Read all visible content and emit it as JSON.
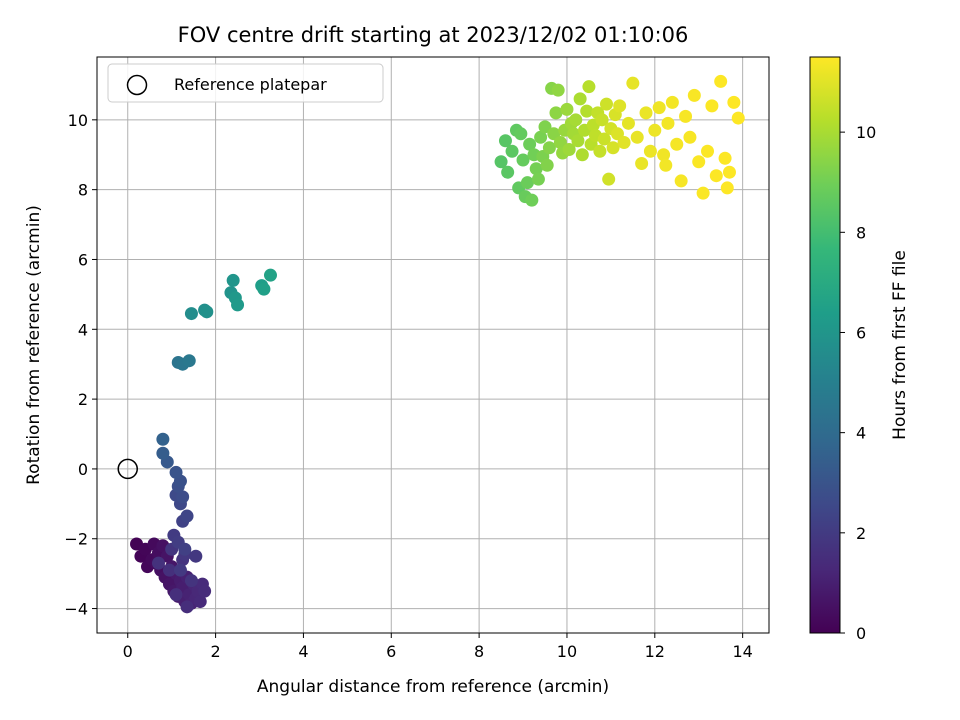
{
  "chart_data": {
    "type": "scatter",
    "title": "FOV centre drift starting at 2023/12/02 01:10:06",
    "xlabel": "Angular distance from reference (arcmin)",
    "ylabel": "Rotation from reference (arcmin)",
    "xlim": [
      -0.7,
      14.6
    ],
    "ylim": [
      -4.7,
      11.8
    ],
    "xticks": [
      0,
      2,
      4,
      6,
      8,
      10,
      12,
      14
    ],
    "yticks": [
      -4,
      -2,
      0,
      2,
      4,
      6,
      8,
      10
    ],
    "grid": true,
    "legend": {
      "placement": "top-left",
      "entries": [
        "Reference platepar"
      ]
    },
    "colorbar": {
      "label": "Hours from first FF file",
      "range": [
        0,
        11.5
      ],
      "ticks": [
        0,
        2,
        4,
        6,
        8,
        10
      ],
      "colormap": [
        "#440154",
        "#482878",
        "#3e4989",
        "#31688e",
        "#26828e",
        "#1f9e89",
        "#35b779",
        "#6ece58",
        "#b5de2b",
        "#fde725"
      ]
    },
    "reference": {
      "name": "Reference platepar",
      "x": 0,
      "y": 0,
      "marker": "open-circle"
    },
    "series": [
      {
        "points": [
          [
            0.2,
            -2.15,
            0.05
          ],
          [
            0.3,
            -2.5,
            0.1
          ],
          [
            0.4,
            -2.3,
            0.15
          ],
          [
            0.45,
            -2.8,
            0.2
          ],
          [
            0.55,
            -2.6,
            0.25
          ],
          [
            0.6,
            -2.15,
            0.3
          ],
          [
            0.65,
            -2.7,
            0.35
          ],
          [
            0.7,
            -2.4,
            0.4
          ],
          [
            0.75,
            -2.9,
            0.45
          ],
          [
            0.8,
            -2.2,
            0.5
          ],
          [
            0.85,
            -3.1,
            0.55
          ],
          [
            0.9,
            -2.5,
            0.6
          ],
          [
            0.95,
            -3.3,
            0.65
          ],
          [
            1.0,
            -2.8,
            0.7
          ],
          [
            1.05,
            -3.5,
            0.75
          ],
          [
            1.1,
            -3.0,
            0.8
          ],
          [
            1.15,
            -3.65,
            0.85
          ],
          [
            1.2,
            -3.2,
            0.9
          ],
          [
            1.25,
            -3.4,
            0.95
          ],
          [
            1.3,
            -3.8,
            1.0
          ],
          [
            1.35,
            -3.1,
            1.05
          ],
          [
            1.4,
            -3.6,
            1.1
          ],
          [
            1.45,
            -3.85,
            1.15
          ],
          [
            1.5,
            -3.3,
            1.2
          ],
          [
            1.55,
            -3.7,
            1.25
          ],
          [
            1.6,
            -3.5,
            1.3
          ],
          [
            1.65,
            -3.8,
            1.35
          ],
          [
            1.7,
            -3.3,
            1.4
          ],
          [
            1.75,
            -3.5,
            1.45
          ],
          [
            1.35,
            -3.95,
            1.5
          ],
          [
            1.1,
            -3.6,
            1.55
          ],
          [
            0.95,
            -2.9,
            1.6
          ],
          [
            0.7,
            -2.7,
            1.65
          ],
          [
            1.25,
            -2.6,
            1.7
          ],
          [
            1.45,
            -3.2,
            1.75
          ],
          [
            1.0,
            -2.3,
            1.8
          ],
          [
            1.3,
            -2.45,
            1.85
          ],
          [
            1.55,
            -2.5,
            1.9
          ],
          [
            1.2,
            -2.9,
            1.95
          ],
          [
            1.05,
            -1.9,
            2.0
          ],
          [
            1.15,
            -2.1,
            2.1
          ],
          [
            1.3,
            -2.3,
            2.2
          ],
          [
            1.25,
            -1.5,
            2.3
          ],
          [
            1.35,
            -1.35,
            2.4
          ],
          [
            1.2,
            -1.0,
            2.5
          ],
          [
            1.1,
            -0.75,
            2.6
          ],
          [
            1.25,
            -0.8,
            2.7
          ],
          [
            1.15,
            -0.5,
            2.8
          ],
          [
            1.2,
            -0.35,
            2.9
          ],
          [
            1.1,
            -0.1,
            3.0
          ],
          [
            0.9,
            0.2,
            3.2
          ],
          [
            0.8,
            0.45,
            3.4
          ],
          [
            0.8,
            0.85,
            3.6
          ],
          [
            1.15,
            3.05,
            4.4
          ],
          [
            1.25,
            3.0,
            4.5
          ],
          [
            1.4,
            3.1,
            4.6
          ],
          [
            1.45,
            4.45,
            5.6
          ],
          [
            1.75,
            4.55,
            5.7
          ],
          [
            1.8,
            4.5,
            5.8
          ],
          [
            2.35,
            5.05,
            5.9
          ],
          [
            2.4,
            5.4,
            6.0
          ],
          [
            2.45,
            4.9,
            6.1
          ],
          [
            2.5,
            4.7,
            6.2
          ],
          [
            3.05,
            5.25,
            6.4
          ],
          [
            3.1,
            5.15,
            6.5
          ],
          [
            3.25,
            5.55,
            6.6
          ],
          [
            8.5,
            8.8,
            8.4
          ],
          [
            8.6,
            9.4,
            8.45
          ],
          [
            8.65,
            8.5,
            8.5
          ],
          [
            8.75,
            9.1,
            8.55
          ],
          [
            8.85,
            9.7,
            8.6
          ],
          [
            8.9,
            8.05,
            8.65
          ],
          [
            8.95,
            9.6,
            8.7
          ],
          [
            9.0,
            8.85,
            8.75
          ],
          [
            9.05,
            7.8,
            8.8
          ],
          [
            9.1,
            8.2,
            8.85
          ],
          [
            9.15,
            9.3,
            8.9
          ],
          [
            9.2,
            7.7,
            8.95
          ],
          [
            9.25,
            9.0,
            9.0
          ],
          [
            9.3,
            8.6,
            9.05
          ],
          [
            9.35,
            8.3,
            9.1
          ],
          [
            9.4,
            9.5,
            9.15
          ],
          [
            9.45,
            8.95,
            9.2
          ],
          [
            9.5,
            9.8,
            9.25
          ],
          [
            9.55,
            8.7,
            9.3
          ],
          [
            9.6,
            9.2,
            9.35
          ],
          [
            9.65,
            10.9,
            9.4
          ],
          [
            9.7,
            9.6,
            9.45
          ],
          [
            9.75,
            10.2,
            9.5
          ],
          [
            9.8,
            10.85,
            9.55
          ],
          [
            9.85,
            9.35,
            9.6
          ],
          [
            9.9,
            9.05,
            9.65
          ],
          [
            9.95,
            9.7,
            9.7
          ],
          [
            10.0,
            10.3,
            9.75
          ],
          [
            10.05,
            9.15,
            9.8
          ],
          [
            10.1,
            9.9,
            9.85
          ],
          [
            10.15,
            9.6,
            9.9
          ],
          [
            10.2,
            10.0,
            9.95
          ],
          [
            10.25,
            9.4,
            10.0
          ],
          [
            10.3,
            10.6,
            10.05
          ],
          [
            10.35,
            9.0,
            10.1
          ],
          [
            10.4,
            9.7,
            10.15
          ],
          [
            10.45,
            10.25,
            10.2
          ],
          [
            10.5,
            10.95,
            10.25
          ],
          [
            10.55,
            9.3,
            10.3
          ],
          [
            10.6,
            9.85,
            10.35
          ],
          [
            10.65,
            9.55,
            10.4
          ],
          [
            10.7,
            10.2,
            10.45
          ],
          [
            10.75,
            9.1,
            10.5
          ],
          [
            10.8,
            10.0,
            10.55
          ],
          [
            10.85,
            9.45,
            10.6
          ],
          [
            10.9,
            10.45,
            10.65
          ],
          [
            10.95,
            8.3,
            10.7
          ],
          [
            11.0,
            9.75,
            10.75
          ],
          [
            11.05,
            9.2,
            10.8
          ],
          [
            11.1,
            10.15,
            10.85
          ],
          [
            11.15,
            9.6,
            10.9
          ],
          [
            11.2,
            10.4,
            10.95
          ],
          [
            11.3,
            9.35,
            11.0
          ],
          [
            11.4,
            9.9,
            11.05
          ],
          [
            11.5,
            11.05,
            11.1
          ],
          [
            11.6,
            9.5,
            11.12
          ],
          [
            11.7,
            8.75,
            11.15
          ],
          [
            11.8,
            10.2,
            11.17
          ],
          [
            11.9,
            9.1,
            11.2
          ],
          [
            12.0,
            9.7,
            11.22
          ],
          [
            12.1,
            10.35,
            11.25
          ],
          [
            12.2,
            9.0,
            11.27
          ],
          [
            12.25,
            8.7,
            11.3
          ],
          [
            12.3,
            9.9,
            11.3
          ],
          [
            12.4,
            10.5,
            11.32
          ],
          [
            12.5,
            9.3,
            11.35
          ],
          [
            12.6,
            8.25,
            11.37
          ],
          [
            12.7,
            10.1,
            11.4
          ],
          [
            12.8,
            9.5,
            11.4
          ],
          [
            12.9,
            10.7,
            11.42
          ],
          [
            13.0,
            8.8,
            11.44
          ],
          [
            13.1,
            7.9,
            11.45
          ],
          [
            13.2,
            9.1,
            11.46
          ],
          [
            13.3,
            10.4,
            11.47
          ],
          [
            13.4,
            8.4,
            11.48
          ],
          [
            13.5,
            11.1,
            11.48
          ],
          [
            13.6,
            8.9,
            11.49
          ],
          [
            13.7,
            8.5,
            11.49
          ],
          [
            13.8,
            10.5,
            11.5
          ],
          [
            13.9,
            10.05,
            11.5
          ],
          [
            13.65,
            8.05,
            11.5
          ]
        ]
      }
    ]
  }
}
